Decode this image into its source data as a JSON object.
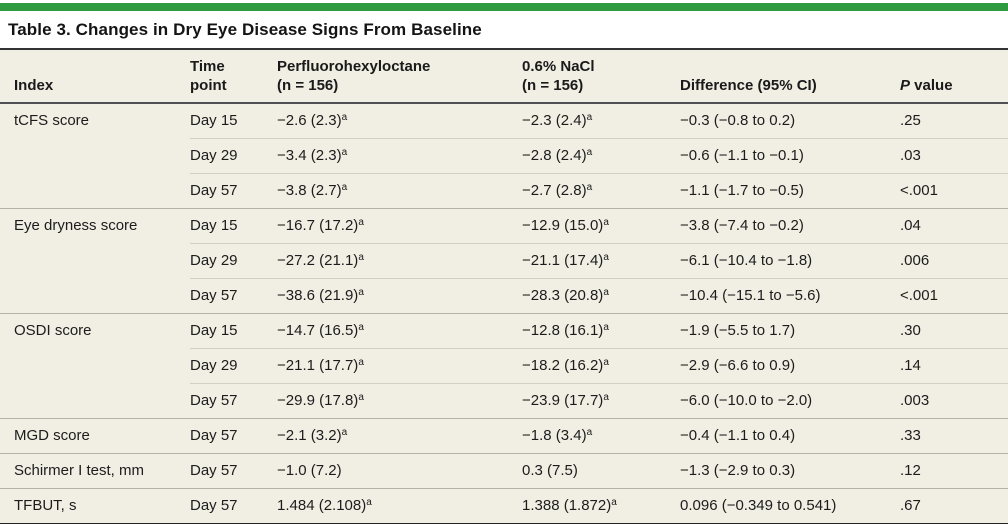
{
  "colors": {
    "accent_green": "#2f9b41",
    "table_background": "#f1eee3",
    "rule_dark": "#232323",
    "rule_group": "#b6b3a6",
    "rule_partial": "#d2cfc1"
  },
  "title": "Table 3. Changes in Dry Eye Disease Signs From Baseline",
  "table": {
    "header": {
      "index": "Index",
      "time_line1": "Time",
      "time_line2": "point",
      "drug_line1": "Perfluorohexyloctane",
      "drug_line2": "(n = 156)",
      "nacl_line1": "0.6% NaCl",
      "nacl_line2": "(n = 156)",
      "difference": "Difference (95% CI)",
      "p_italic": "P",
      "p_rest": " value"
    },
    "footnote_marker": "a",
    "rows": [
      {
        "index": "tCFS score",
        "time": "Day 15",
        "drug": "−2.6 (2.3)",
        "drug_sup": "a",
        "nacl": "−2.3 (2.4)",
        "nacl_sup": "a",
        "diff": "−0.3 (−0.8 to 0.2)",
        "p": ".25",
        "rule": "none"
      },
      {
        "index": "",
        "time": "Day 29",
        "drug": "−3.4 (2.3)",
        "drug_sup": "a",
        "nacl": "−2.8 (2.4)",
        "nacl_sup": "a",
        "diff": "−0.6 (−1.1 to −0.1)",
        "p": ".03",
        "rule": "partial"
      },
      {
        "index": "",
        "time": "Day 57",
        "drug": "−3.8 (2.7)",
        "drug_sup": "a",
        "nacl": "−2.7 (2.8)",
        "nacl_sup": "a",
        "diff": "−1.1 (−1.7 to −0.5)",
        "p": "<.001",
        "rule": "partial"
      },
      {
        "index": "Eye dryness score",
        "time": "Day 15",
        "drug": "−16.7 (17.2)",
        "drug_sup": "a",
        "nacl": "−12.9 (15.0)",
        "nacl_sup": "a",
        "diff": "−3.8 (−7.4 to −0.2)",
        "p": ".04",
        "rule": "full"
      },
      {
        "index": "",
        "time": "Day 29",
        "drug": "−27.2 (21.1)",
        "drug_sup": "a",
        "nacl": "−21.1 (17.4)",
        "nacl_sup": "a",
        "diff": "−6.1 (−10.4 to −1.8)",
        "p": ".006",
        "rule": "partial"
      },
      {
        "index": "",
        "time": "Day 57",
        "drug": "−38.6 (21.9)",
        "drug_sup": "a",
        "nacl": "−28.3 (20.8)",
        "nacl_sup": "a",
        "diff": "−10.4 (−15.1 to −5.6)",
        "p": "<.001",
        "rule": "partial"
      },
      {
        "index": "OSDI score",
        "time": "Day 15",
        "drug": "−14.7 (16.5)",
        "drug_sup": "a",
        "nacl": "−12.8 (16.1)",
        "nacl_sup": "a",
        "diff": "−1.9 (−5.5 to 1.7)",
        "p": ".30",
        "rule": "full"
      },
      {
        "index": "",
        "time": "Day 29",
        "drug": "−21.1 (17.7)",
        "drug_sup": "a",
        "nacl": "−18.2 (16.2)",
        "nacl_sup": "a",
        "diff": "−2.9 (−6.6 to 0.9)",
        "p": ".14",
        "rule": "partial"
      },
      {
        "index": "",
        "time": "Day 57",
        "drug": "−29.9 (17.8)",
        "drug_sup": "a",
        "nacl": "−23.9 (17.7)",
        "nacl_sup": "a",
        "diff": "−6.0 (−10.0 to −2.0)",
        "p": ".003",
        "rule": "partial"
      },
      {
        "index": "MGD score",
        "time": "Day 57",
        "drug": "−2.1 (3.2)",
        "drug_sup": "a",
        "nacl": "−1.8 (3.4)",
        "nacl_sup": "a",
        "diff": "−0.4 (−1.1 to 0.4)",
        "p": ".33",
        "rule": "full"
      },
      {
        "index": "Schirmer I test, mm",
        "time": "Day 57",
        "drug": "−1.0 (7.2)",
        "drug_sup": null,
        "nacl": "0.3 (7.5)",
        "nacl_sup": null,
        "diff": "−1.3 (−2.9 to 0.3)",
        "p": ".12",
        "rule": "full"
      },
      {
        "index": "TFBUT, s",
        "time": "Day 57",
        "drug": "1.484 (2.108)",
        "drug_sup": "a",
        "nacl": "1.388 (1.872)",
        "nacl_sup": "a",
        "diff": "0.096 (−0.349 to 0.541)",
        "p": ".67",
        "rule": "full"
      }
    ]
  }
}
